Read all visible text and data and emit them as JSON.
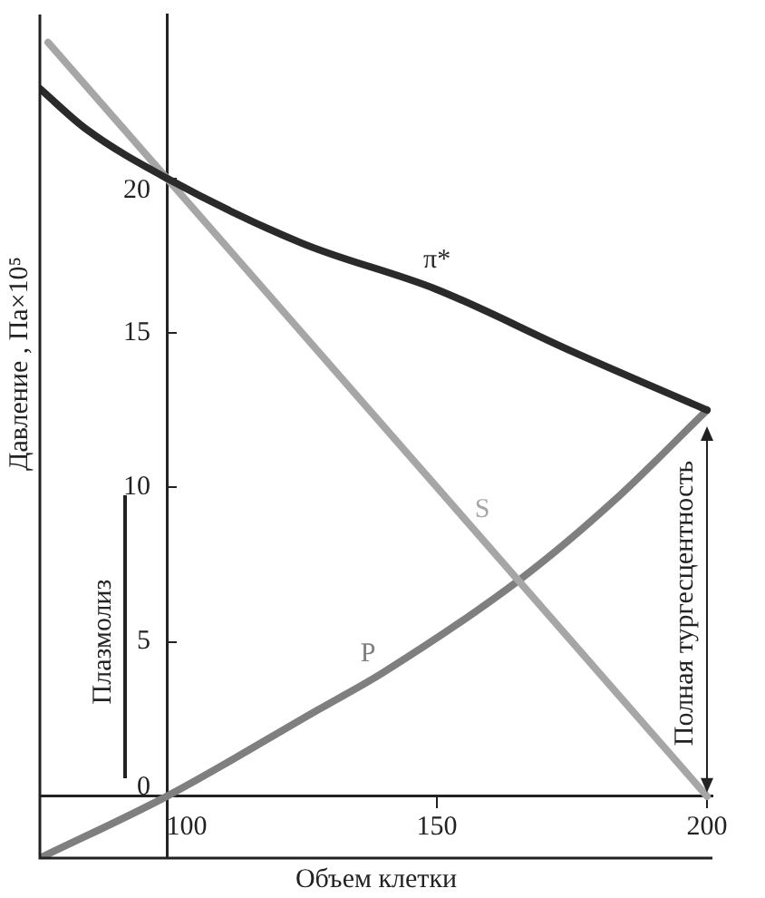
{
  "chart_data": {
    "type": "line",
    "xlabel": "Объем клетки",
    "ylabel": "Давление , Па×10⁵",
    "xlim": [
      76.5,
      201
    ],
    "ylim": [
      -2,
      25.3
    ],
    "xticks": [
      100,
      150,
      200
    ],
    "yticks": [
      0,
      5,
      10,
      15,
      20
    ],
    "grid": false,
    "legend": false,
    "series": [
      {
        "name": "π*",
        "color": "#2a2a2a",
        "x": [
          76.5,
          85,
          100,
          125,
          150,
          175,
          200
        ],
        "values": [
          22.9,
          21.6,
          20,
          17.9,
          16.4,
          14.4,
          12.5
        ]
      },
      {
        "name": "S",
        "color": "#a6a6a6",
        "x": [
          78,
          200
        ],
        "values": [
          24.4,
          0
        ]
      },
      {
        "name": "P",
        "color": "#7f7f7f",
        "x": [
          76.5,
          100,
          128,
          140,
          166,
          183,
          200
        ],
        "values": [
          -2,
          0,
          2.8,
          4.0,
          7.1,
          9.6,
          12.5
        ]
      }
    ],
    "annotations": [
      "Плазмолиз",
      "Полная тургесцентность"
    ]
  }
}
